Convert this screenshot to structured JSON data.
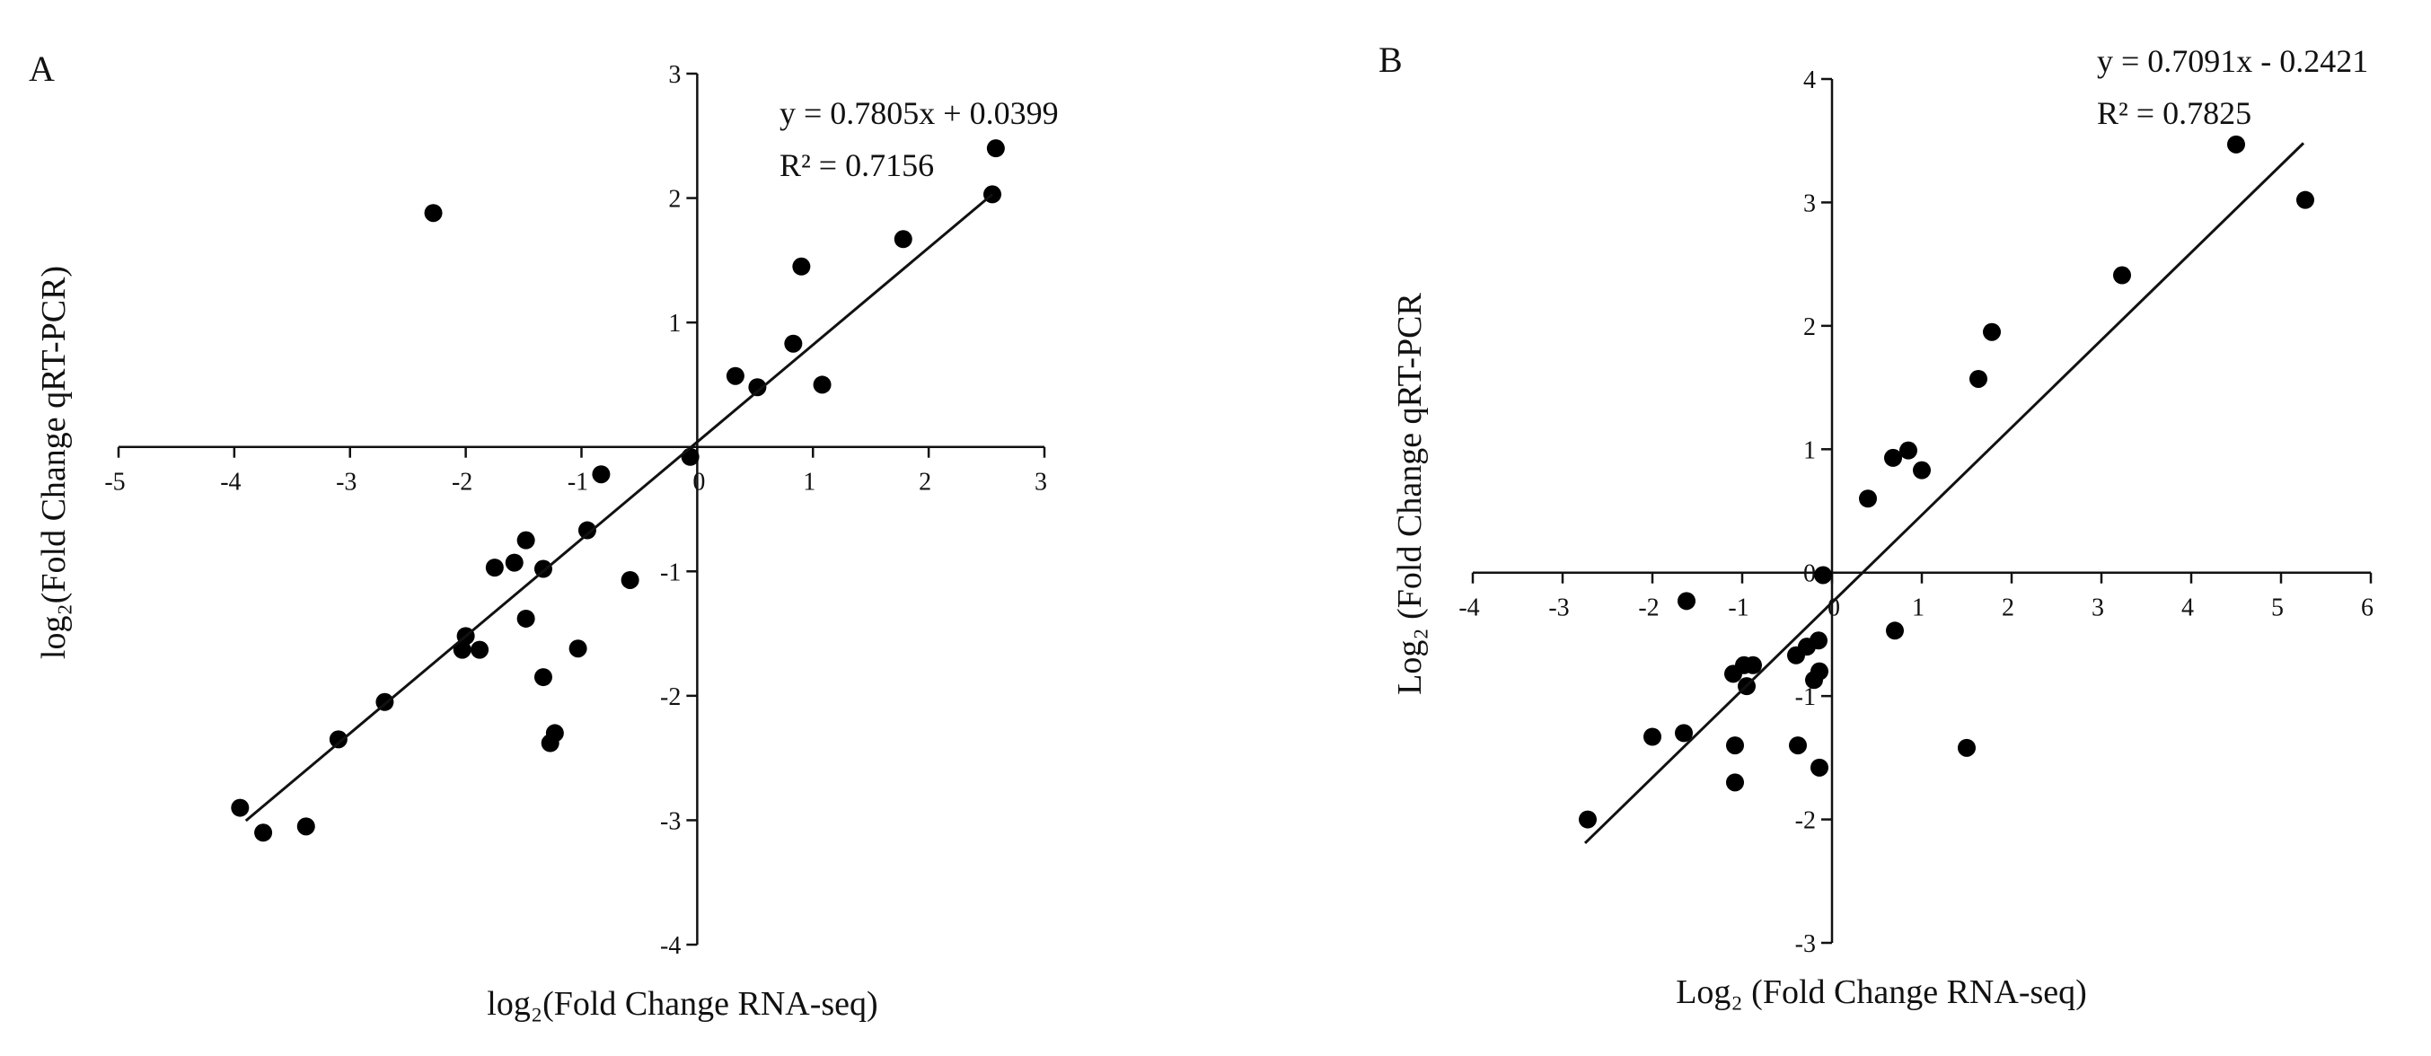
{
  "figure_labels": [
    "A",
    "B"
  ],
  "chart_data": [
    {
      "panel_label": "A",
      "type": "scatter",
      "title": "",
      "xlabel": "log₂(Fold Change RNA-seq)",
      "ylabel": "log₂(Fold Change qRT-PCR)",
      "xlim": [
        -5,
        3
      ],
      "ylim": [
        -4,
        3
      ],
      "x_ticks": [
        -5,
        -4,
        -3,
        -2,
        -1,
        0,
        1,
        2,
        3
      ],
      "y_ticks": [
        3,
        2,
        1,
        -1,
        -2,
        -3,
        -4
      ],
      "trendline": {
        "equation": "y = 0.7805x + 0.0399",
        "r_squared": "R² = 0.7156",
        "slope": 0.7805,
        "intercept": 0.0399,
        "x_range": [
          -3.9,
          2.55
        ]
      },
      "points": [
        {
          "x": -3.95,
          "y": -2.9
        },
        {
          "x": -3.75,
          "y": -3.1
        },
        {
          "x": -3.38,
          "y": -3.05
        },
        {
          "x": -3.1,
          "y": -2.35
        },
        {
          "x": -2.7,
          "y": -2.05
        },
        {
          "x": -2.28,
          "y": 1.88
        },
        {
          "x": -2.03,
          "y": -1.63
        },
        {
          "x": -2.0,
          "y": -1.52
        },
        {
          "x": -1.88,
          "y": -1.63
        },
        {
          "x": -1.75,
          "y": -0.97
        },
        {
          "x": -1.58,
          "y": -0.93
        },
        {
          "x": -1.48,
          "y": -0.75
        },
        {
          "x": -1.48,
          "y": -1.38
        },
        {
          "x": -1.33,
          "y": -0.98
        },
        {
          "x": -1.33,
          "y": -1.85
        },
        {
          "x": -1.27,
          "y": -2.38
        },
        {
          "x": -1.23,
          "y": -2.3
        },
        {
          "x": -1.03,
          "y": -1.62
        },
        {
          "x": -0.95,
          "y": -0.67
        },
        {
          "x": -0.83,
          "y": -0.22
        },
        {
          "x": -0.58,
          "y": -1.07
        },
        {
          "x": -0.06,
          "y": -0.08
        },
        {
          "x": 0.33,
          "y": 0.57
        },
        {
          "x": 0.52,
          "y": 0.48
        },
        {
          "x": 0.83,
          "y": 0.83
        },
        {
          "x": 0.9,
          "y": 1.45
        },
        {
          "x": 1.08,
          "y": 0.5
        },
        {
          "x": 1.78,
          "y": 1.67
        },
        {
          "x": 2.55,
          "y": 2.03
        },
        {
          "x": 2.58,
          "y": 2.4
        }
      ]
    },
    {
      "panel_label": "B",
      "type": "scatter",
      "title": "",
      "xlabel": "Log₂ (Fold Change RNA-seq)",
      "ylabel": "Log₂ (Fold Change qRT-PCR",
      "xlim": [
        -4,
        6
      ],
      "ylim": [
        -3,
        4
      ],
      "x_ticks": [
        -4,
        -3,
        -2,
        -1,
        0,
        1,
        2,
        3,
        4,
        5,
        6
      ],
      "y_ticks": [
        4,
        3,
        2,
        1,
        0,
        -1,
        -2,
        -3
      ],
      "trendline": {
        "equation": "y = 0.7091x - 0.2421",
        "r_squared": "R² = 0.7825",
        "slope": 0.7091,
        "intercept": -0.2421,
        "x_range": [
          -2.75,
          5.25
        ]
      },
      "points": [
        {
          "x": -2.72,
          "y": -2.0
        },
        {
          "x": -2.0,
          "y": -1.33
        },
        {
          "x": -1.65,
          "y": -1.3
        },
        {
          "x": -1.62,
          "y": -0.23
        },
        {
          "x": -1.1,
          "y": -0.82
        },
        {
          "x": -1.08,
          "y": -1.4
        },
        {
          "x": -1.08,
          "y": -1.7
        },
        {
          "x": -0.98,
          "y": -0.75
        },
        {
          "x": -0.95,
          "y": -0.92
        },
        {
          "x": -0.88,
          "y": -0.75
        },
        {
          "x": -0.4,
          "y": -0.67
        },
        {
          "x": -0.38,
          "y": -1.4
        },
        {
          "x": -0.28,
          "y": -0.6
        },
        {
          "x": -0.2,
          "y": -0.87
        },
        {
          "x": -0.15,
          "y": -0.55
        },
        {
          "x": -0.14,
          "y": -0.8
        },
        {
          "x": -0.14,
          "y": -1.58
        },
        {
          "x": -0.1,
          "y": -0.02
        },
        {
          "x": 0.4,
          "y": 0.6
        },
        {
          "x": 0.68,
          "y": 0.93
        },
        {
          "x": 0.7,
          "y": -0.47
        },
        {
          "x": 0.85,
          "y": 0.99
        },
        {
          "x": 1.0,
          "y": 0.83
        },
        {
          "x": 1.5,
          "y": -1.42
        },
        {
          "x": 1.63,
          "y": 1.57
        },
        {
          "x": 1.78,
          "y": 1.95
        },
        {
          "x": 3.23,
          "y": 2.41
        },
        {
          "x": 4.5,
          "y": 3.47
        },
        {
          "x": 5.27,
          "y": 3.02
        }
      ]
    }
  ]
}
